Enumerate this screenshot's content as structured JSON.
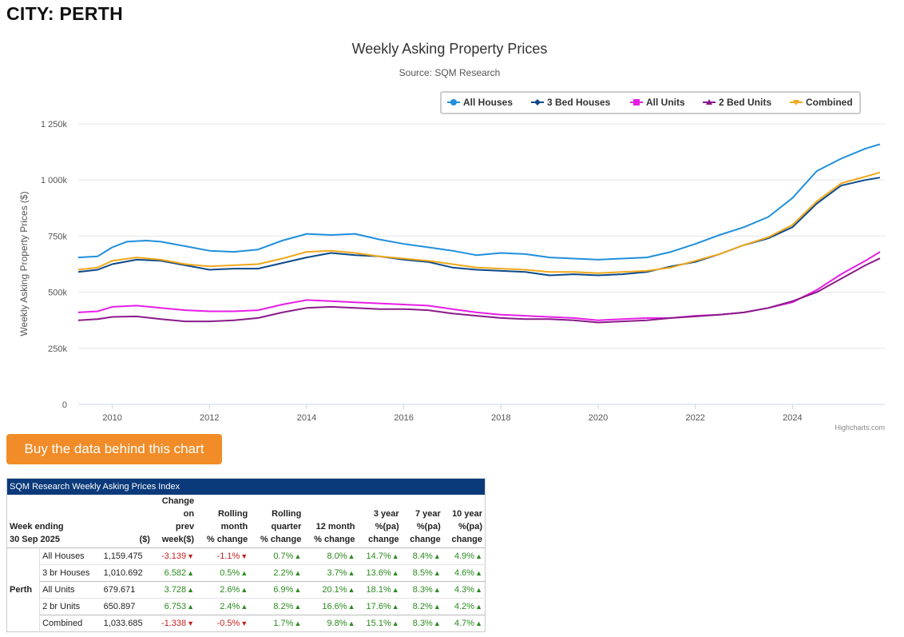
{
  "header": {
    "city_title": "CITY: PERTH"
  },
  "chart_data": {
    "type": "line",
    "title": "Weekly Asking Property Prices",
    "subtitle": "Source: SQM Research",
    "xlabel": "",
    "ylabel": "Weekly Asking Property Prices ($)",
    "credits": "Highcharts.com",
    "xlim": [
      2009.3,
      2025.9
    ],
    "ylim": [
      0,
      1250000
    ],
    "y_ticks": [
      0,
      250000,
      500000,
      750000,
      1000000,
      1250000
    ],
    "y_tick_labels": [
      "0",
      "250k",
      "500k",
      "750k",
      "1 000k",
      "1 250k"
    ],
    "x_ticks": [
      2010,
      2012,
      2014,
      2016,
      2018,
      2020,
      2022,
      2024
    ],
    "x_tick_labels": [
      "2010",
      "2012",
      "2014",
      "2016",
      "2018",
      "2020",
      "2022",
      "2024"
    ],
    "legend_position": "top-right",
    "series": [
      {
        "name": "All Houses",
        "color": "#1f8fdc",
        "marker": "circle",
        "points": [
          [
            2009.3,
            655000
          ],
          [
            2009.7,
            660000
          ],
          [
            2010.0,
            700000
          ],
          [
            2010.3,
            725000
          ],
          [
            2010.7,
            730000
          ],
          [
            2011.0,
            725000
          ],
          [
            2011.5,
            705000
          ],
          [
            2012.0,
            685000
          ],
          [
            2012.5,
            680000
          ],
          [
            2013.0,
            690000
          ],
          [
            2013.5,
            730000
          ],
          [
            2014.0,
            760000
          ],
          [
            2014.5,
            755000
          ],
          [
            2015.0,
            760000
          ],
          [
            2015.5,
            735000
          ],
          [
            2016.0,
            715000
          ],
          [
            2016.5,
            700000
          ],
          [
            2017.0,
            685000
          ],
          [
            2017.5,
            665000
          ],
          [
            2018.0,
            675000
          ],
          [
            2018.5,
            670000
          ],
          [
            2019.0,
            655000
          ],
          [
            2019.5,
            650000
          ],
          [
            2020.0,
            645000
          ],
          [
            2020.5,
            650000
          ],
          [
            2021.0,
            655000
          ],
          [
            2021.5,
            680000
          ],
          [
            2022.0,
            715000
          ],
          [
            2022.5,
            755000
          ],
          [
            2023.0,
            790000
          ],
          [
            2023.5,
            835000
          ],
          [
            2024.0,
            920000
          ],
          [
            2024.5,
            1040000
          ],
          [
            2025.0,
            1095000
          ],
          [
            2025.5,
            1140000
          ],
          [
            2025.8,
            1159475
          ]
        ]
      },
      {
        "name": "3 Bed Houses",
        "color": "#0b4a8a",
        "marker": "diamond",
        "points": [
          [
            2009.3,
            590000
          ],
          [
            2009.7,
            600000
          ],
          [
            2010.0,
            625000
          ],
          [
            2010.5,
            645000
          ],
          [
            2011.0,
            640000
          ],
          [
            2011.5,
            620000
          ],
          [
            2012.0,
            600000
          ],
          [
            2012.5,
            605000
          ],
          [
            2013.0,
            605000
          ],
          [
            2013.5,
            630000
          ],
          [
            2014.0,
            655000
          ],
          [
            2014.5,
            675000
          ],
          [
            2015.0,
            665000
          ],
          [
            2015.5,
            660000
          ],
          [
            2016.0,
            645000
          ],
          [
            2016.5,
            635000
          ],
          [
            2017.0,
            610000
          ],
          [
            2017.5,
            600000
          ],
          [
            2018.0,
            595000
          ],
          [
            2018.5,
            590000
          ],
          [
            2019.0,
            575000
          ],
          [
            2019.5,
            580000
          ],
          [
            2020.0,
            575000
          ],
          [
            2020.5,
            580000
          ],
          [
            2021.0,
            590000
          ],
          [
            2021.5,
            615000
          ],
          [
            2022.0,
            635000
          ],
          [
            2022.5,
            670000
          ],
          [
            2023.0,
            710000
          ],
          [
            2023.5,
            740000
          ],
          [
            2024.0,
            790000
          ],
          [
            2024.5,
            895000
          ],
          [
            2025.0,
            975000
          ],
          [
            2025.5,
            1000000
          ],
          [
            2025.8,
            1010692
          ]
        ]
      },
      {
        "name": "All Units",
        "color": "#e61ee6",
        "marker": "square",
        "points": [
          [
            2009.3,
            410000
          ],
          [
            2009.7,
            415000
          ],
          [
            2010.0,
            435000
          ],
          [
            2010.5,
            440000
          ],
          [
            2011.0,
            430000
          ],
          [
            2011.5,
            420000
          ],
          [
            2012.0,
            415000
          ],
          [
            2012.5,
            415000
          ],
          [
            2013.0,
            420000
          ],
          [
            2013.5,
            445000
          ],
          [
            2014.0,
            465000
          ],
          [
            2014.5,
            460000
          ],
          [
            2015.0,
            455000
          ],
          [
            2015.5,
            450000
          ],
          [
            2016.0,
            445000
          ],
          [
            2016.5,
            440000
          ],
          [
            2017.0,
            425000
          ],
          [
            2017.5,
            410000
          ],
          [
            2018.0,
            400000
          ],
          [
            2018.5,
            395000
          ],
          [
            2019.0,
            390000
          ],
          [
            2019.5,
            385000
          ],
          [
            2020.0,
            375000
          ],
          [
            2020.5,
            380000
          ],
          [
            2021.0,
            385000
          ],
          [
            2021.5,
            385000
          ],
          [
            2022.0,
            395000
          ],
          [
            2022.5,
            400000
          ],
          [
            2023.0,
            410000
          ],
          [
            2023.5,
            430000
          ],
          [
            2024.0,
            455000
          ],
          [
            2024.5,
            510000
          ],
          [
            2025.0,
            580000
          ],
          [
            2025.5,
            640000
          ],
          [
            2025.8,
            679671
          ]
        ]
      },
      {
        "name": "2 Bed Units",
        "color": "#8a1a8a",
        "marker": "triangle",
        "points": [
          [
            2009.3,
            375000
          ],
          [
            2009.7,
            380000
          ],
          [
            2010.0,
            390000
          ],
          [
            2010.5,
            392000
          ],
          [
            2011.0,
            380000
          ],
          [
            2011.5,
            370000
          ],
          [
            2012.0,
            370000
          ],
          [
            2012.5,
            375000
          ],
          [
            2013.0,
            385000
          ],
          [
            2013.5,
            410000
          ],
          [
            2014.0,
            430000
          ],
          [
            2014.5,
            435000
          ],
          [
            2015.0,
            430000
          ],
          [
            2015.5,
            425000
          ],
          [
            2016.0,
            425000
          ],
          [
            2016.5,
            420000
          ],
          [
            2017.0,
            405000
          ],
          [
            2017.5,
            395000
          ],
          [
            2018.0,
            385000
          ],
          [
            2018.5,
            380000
          ],
          [
            2019.0,
            380000
          ],
          [
            2019.5,
            375000
          ],
          [
            2020.0,
            365000
          ],
          [
            2020.5,
            370000
          ],
          [
            2021.0,
            375000
          ],
          [
            2021.5,
            385000
          ],
          [
            2022.0,
            392000
          ],
          [
            2022.5,
            400000
          ],
          [
            2023.0,
            410000
          ],
          [
            2023.5,
            430000
          ],
          [
            2024.0,
            460000
          ],
          [
            2024.5,
            500000
          ],
          [
            2025.0,
            560000
          ],
          [
            2025.5,
            620000
          ],
          [
            2025.8,
            650897
          ]
        ]
      },
      {
        "name": "Combined",
        "color": "#f0a81c",
        "marker": "triangle-down",
        "points": [
          [
            2009.3,
            600000
          ],
          [
            2009.7,
            610000
          ],
          [
            2010.0,
            640000
          ],
          [
            2010.5,
            655000
          ],
          [
            2011.0,
            645000
          ],
          [
            2011.5,
            625000
          ],
          [
            2012.0,
            615000
          ],
          [
            2012.5,
            620000
          ],
          [
            2013.0,
            625000
          ],
          [
            2013.5,
            650000
          ],
          [
            2014.0,
            680000
          ],
          [
            2014.5,
            685000
          ],
          [
            2015.0,
            675000
          ],
          [
            2015.5,
            660000
          ],
          [
            2016.0,
            650000
          ],
          [
            2016.5,
            640000
          ],
          [
            2017.0,
            625000
          ],
          [
            2017.5,
            610000
          ],
          [
            2018.0,
            605000
          ],
          [
            2018.5,
            600000
          ],
          [
            2019.0,
            590000
          ],
          [
            2019.5,
            590000
          ],
          [
            2020.0,
            585000
          ],
          [
            2020.5,
            590000
          ],
          [
            2021.0,
            595000
          ],
          [
            2021.5,
            610000
          ],
          [
            2022.0,
            640000
          ],
          [
            2022.5,
            670000
          ],
          [
            2023.0,
            710000
          ],
          [
            2023.5,
            745000
          ],
          [
            2024.0,
            800000
          ],
          [
            2024.5,
            905000
          ],
          [
            2025.0,
            985000
          ],
          [
            2025.5,
            1015000
          ],
          [
            2025.8,
            1033685
          ]
        ]
      }
    ]
  },
  "cta": {
    "label": "Buy the data behind this chart"
  },
  "table": {
    "title": "SQM Research Weekly Asking Prices Index",
    "week_label": "Week ending",
    "week_date": "30 Sep 2025",
    "headers": {
      "price": [
        "($)"
      ],
      "change": [
        "Change",
        "on",
        "prev",
        "week($)"
      ],
      "rolling_month": [
        "Rolling",
        "month",
        "% change"
      ],
      "rolling_quarter": [
        "Rolling",
        "quarter",
        "% change"
      ],
      "twelve_month": [
        "12 month",
        "% change"
      ],
      "three_year": [
        "3 year",
        "%(pa)",
        "change"
      ],
      "seven_year": [
        "7 year",
        "%(pa)",
        "change"
      ],
      "ten_year": [
        "10 year",
        "%(pa)",
        "change"
      ]
    },
    "city": "Perth",
    "rows": [
      {
        "name": "All Houses",
        "price": "1,159.475",
        "change": "-3.139",
        "change_dir": "down",
        "rm": "-1.1%",
        "rm_dir": "down",
        "rq": "0.7%",
        "rq_dir": "up",
        "m12": "8.0%",
        "m12_dir": "up",
        "y3": "14.7%",
        "y3_dir": "up",
        "y7": "8.4%",
        "y7_dir": "up",
        "y10": "4.9%",
        "y10_dir": "up"
      },
      {
        "name": "3 br Houses",
        "price": "1,010.692",
        "change": "6.582",
        "change_dir": "up",
        "rm": "0.5%",
        "rm_dir": "up",
        "rq": "2.2%",
        "rq_dir": "up",
        "m12": "3.7%",
        "m12_dir": "up",
        "y3": "13.6%",
        "y3_dir": "up",
        "y7": "8.5%",
        "y7_dir": "up",
        "y10": "4.6%",
        "y10_dir": "up"
      },
      {
        "name": "All Units",
        "price": "679.671",
        "change": "3.728",
        "change_dir": "up",
        "rm": "2.6%",
        "rm_dir": "up",
        "rq": "6.9%",
        "rq_dir": "up",
        "m12": "20.1%",
        "m12_dir": "up",
        "y3": "18.1%",
        "y3_dir": "up",
        "y7": "8.3%",
        "y7_dir": "up",
        "y10": "4.3%",
        "y10_dir": "up"
      },
      {
        "name": "2 br Units",
        "price": "650.897",
        "change": "6.753",
        "change_dir": "up",
        "rm": "2.4%",
        "rm_dir": "up",
        "rq": "8.2%",
        "rq_dir": "up",
        "m12": "16.6%",
        "m12_dir": "up",
        "y3": "17.6%",
        "y3_dir": "up",
        "y7": "8.2%",
        "y7_dir": "up",
        "y10": "4.2%",
        "y10_dir": "up"
      },
      {
        "name": "Combined",
        "price": "1,033.685",
        "change": "-1.338",
        "change_dir": "down",
        "rm": "-0.5%",
        "rm_dir": "down",
        "rq": "1.7%",
        "rq_dir": "up",
        "m12": "9.8%",
        "m12_dir": "up",
        "y3": "15.1%",
        "y3_dir": "up",
        "y7": "8.3%",
        "y7_dir": "up",
        "y10": "4.7%",
        "y10_dir": "up"
      }
    ]
  }
}
